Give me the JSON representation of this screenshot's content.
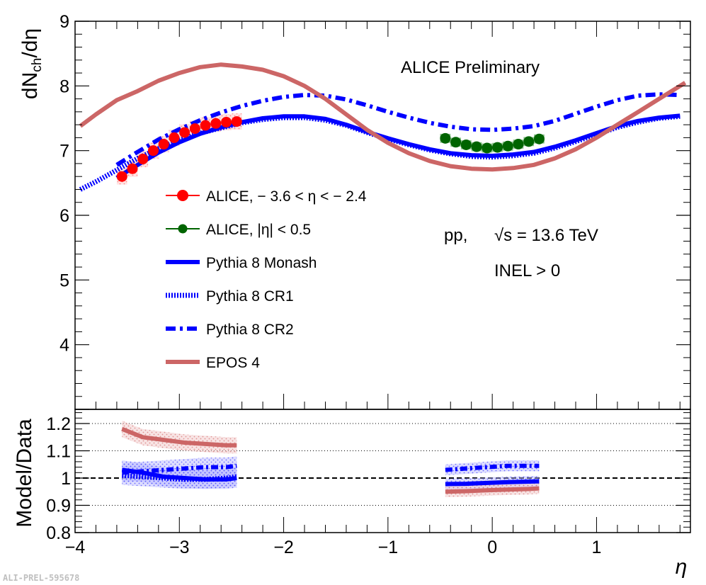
{
  "chart_data": [
    {
      "type": "line",
      "panel": "main",
      "xlabel": "η",
      "ylabel": "dN_ch/dη",
      "xlim": [
        -4,
        1.9
      ],
      "ylim": [
        3,
        9
      ],
      "yticks": [
        "4",
        "5",
        "6",
        "7",
        "8",
        "9"
      ],
      "xticks": [
        "−4",
        "−3",
        "−2",
        "−1",
        "0",
        "1"
      ],
      "annotations": {
        "title": "ALICE Preliminary",
        "system": "pp,",
        "energy": "√s = 13.6 TeV",
        "selection": "INEL > 0",
        "id": "ALI-PREL-595678"
      },
      "legend": [
        {
          "key": "alice_fwd",
          "label": "ALICE,   − 3.6 <   η <   − 2.4",
          "color": "#ff0000"
        },
        {
          "key": "alice_mid",
          "label": "ALICE, |η| < 0.5",
          "color": "#006400"
        },
        {
          "key": "monash",
          "label": "Pythia 8 Monash",
          "color": "#0000ff"
        },
        {
          "key": "cr1",
          "label": "Pythia 8 CR1",
          "color": "#0000ff"
        },
        {
          "key": "cr2",
          "label": "Pythia 8 CR2",
          "color": "#0000ff"
        },
        {
          "key": "epos",
          "label": "EPOS 4",
          "color": "#cc6666"
        }
      ],
      "data_series": [
        {
          "name": "ALICE fwd",
          "x": [
            -3.55,
            -3.45,
            -3.35,
            -3.25,
            -3.15,
            -3.05,
            -2.95,
            -2.85,
            -2.75,
            -2.65,
            -2.55,
            -2.45
          ],
          "y": [
            6.6,
            6.72,
            6.87,
            7.0,
            7.1,
            7.2,
            7.28,
            7.34,
            7.39,
            7.42,
            7.44,
            7.45
          ],
          "sys": 0.25,
          "color": "#ff0000"
        },
        {
          "name": "ALICE mid",
          "x": [
            -0.45,
            -0.35,
            -0.25,
            -0.15,
            -0.05,
            0.05,
            0.15,
            0.25,
            0.35,
            0.45
          ],
          "y": [
            7.19,
            7.13,
            7.09,
            7.06,
            7.04,
            7.05,
            7.07,
            7.1,
            7.14,
            7.18
          ],
          "sys": 0.14,
          "color": "#006400"
        }
      ],
      "model_series": [
        {
          "name": "Pythia 8 Monash",
          "x": [
            -3.6,
            -3.4,
            -3.2,
            -3.0,
            -2.8,
            -2.6,
            -2.4,
            -2.2,
            -2.0,
            -1.8,
            -1.6,
            -1.4,
            -1.2,
            -1.0,
            -0.8,
            -0.6,
            -0.4,
            -0.2,
            0,
            0.2,
            0.4,
            0.6,
            0.8,
            1.0,
            1.2,
            1.4,
            1.6,
            1.8
          ],
          "y": [
            6.58,
            6.78,
            6.97,
            7.13,
            7.26,
            7.36,
            7.44,
            7.5,
            7.53,
            7.53,
            7.49,
            7.4,
            7.29,
            7.19,
            7.1,
            7.02,
            6.96,
            6.93,
            6.92,
            6.94,
            6.98,
            7.06,
            7.16,
            7.27,
            7.38,
            7.46,
            7.51,
            7.54
          ],
          "color": "#0000ff"
        },
        {
          "name": "Pythia 8 CR1",
          "x": [
            -3.95,
            -3.8,
            -3.6,
            -3.4,
            -3.2,
            -3.0,
            -2.8,
            -2.6,
            -2.4,
            -2.2,
            -2.0,
            -1.8,
            -1.6,
            -1.4,
            -1.2,
            -1.0,
            -0.8,
            -0.6,
            -0.4,
            -0.2,
            0,
            0.2,
            0.4,
            0.6,
            0.8,
            1.0,
            1.2,
            1.4,
            1.6,
            1.8
          ],
          "y": [
            6.4,
            6.52,
            6.7,
            6.88,
            7.03,
            7.16,
            7.27,
            7.35,
            7.43,
            7.48,
            7.51,
            7.51,
            7.47,
            7.39,
            7.28,
            7.18,
            7.09,
            7.01,
            6.95,
            6.91,
            6.9,
            6.92,
            6.96,
            7.04,
            7.14,
            7.25,
            7.36,
            7.44,
            7.5,
            7.53
          ],
          "color": "#0000ff"
        },
        {
          "name": "Pythia 8 CR2",
          "x": [
            -3.6,
            -3.4,
            -3.2,
            -3.0,
            -2.8,
            -2.6,
            -2.4,
            -2.2,
            -2.0,
            -1.8,
            -1.6,
            -1.4,
            -1.2,
            -1.0,
            -0.8,
            -0.6,
            -0.4,
            -0.2,
            0,
            0.2,
            0.4,
            0.6,
            0.8,
            1.0,
            1.2,
            1.4,
            1.6,
            1.8
          ],
          "y": [
            6.78,
            6.98,
            7.17,
            7.33,
            7.47,
            7.59,
            7.69,
            7.77,
            7.83,
            7.86,
            7.85,
            7.79,
            7.7,
            7.6,
            7.51,
            7.43,
            7.37,
            7.33,
            7.32,
            7.34,
            7.38,
            7.46,
            7.57,
            7.68,
            7.78,
            7.85,
            7.87,
            7.86
          ],
          "color": "#0000ff"
        },
        {
          "name": "EPOS 4",
          "x": [
            -3.95,
            -3.8,
            -3.6,
            -3.4,
            -3.2,
            -3.0,
            -2.8,
            -2.6,
            -2.4,
            -2.2,
            -2.0,
            -1.8,
            -1.6,
            -1.4,
            -1.2,
            -1.0,
            -0.8,
            -0.6,
            -0.4,
            -0.2,
            0,
            0.2,
            0.4,
            0.6,
            0.8,
            1.0,
            1.2,
            1.4,
            1.6,
            1.85
          ],
          "y": [
            7.38,
            7.56,
            7.78,
            7.92,
            8.08,
            8.2,
            8.29,
            8.33,
            8.3,
            8.25,
            8.15,
            8.0,
            7.8,
            7.56,
            7.32,
            7.12,
            6.96,
            6.84,
            6.76,
            6.72,
            6.71,
            6.73,
            6.78,
            6.88,
            7.02,
            7.2,
            7.4,
            7.6,
            7.8,
            8.05
          ],
          "color": "#cc6666"
        }
      ]
    },
    {
      "type": "line",
      "panel": "ratio",
      "ylabel": "Model/Data",
      "xlabel": "η",
      "xlim": [
        -4,
        1.9
      ],
      "ylim": [
        0.8,
        1.27
      ],
      "yticks": [
        "0.8",
        "0.9",
        "1",
        "1.1",
        "1.2"
      ],
      "ref_lines": [
        0.9,
        1.0,
        1.1,
        1.2
      ],
      "series": [
        {
          "name": "EPOS 4 fwd",
          "x": [
            -3.55,
            -3.35,
            -3.15,
            -2.95,
            -2.75,
            -2.55,
            -2.45
          ],
          "y": [
            1.18,
            1.15,
            1.14,
            1.13,
            1.125,
            1.12,
            1.12
          ],
          "band": 0.03,
          "color": "#cc6666"
        },
        {
          "name": "Monash fwd",
          "x": [
            -3.55,
            -3.35,
            -3.15,
            -2.95,
            -2.75,
            -2.55,
            -2.45
          ],
          "y": [
            1.03,
            1.02,
            1.005,
            1.0,
            0.995,
            0.995,
            1.0
          ],
          "band": 0.035,
          "color": "#0000ff"
        },
        {
          "name": "CR1 fwd",
          "x": [
            -3.55,
            -3.35,
            -3.15,
            -2.95,
            -2.75,
            -2.55,
            -2.45
          ],
          "y": [
            1.01,
            1.005,
            1.0,
            0.995,
            0.995,
            1.0,
            1.005
          ],
          "band": 0.035,
          "color": "#0000ff"
        },
        {
          "name": "CR2 fwd",
          "x": [
            -3.55,
            -3.35,
            -3.15,
            -2.95,
            -2.75,
            -2.55,
            -2.45
          ],
          "y": [
            1.02,
            1.025,
            1.03,
            1.035,
            1.04,
            1.04,
            1.045
          ],
          "band": 0.035,
          "color": "#0000ff"
        },
        {
          "name": "CR2 mid",
          "x": [
            -0.45,
            -0.25,
            -0.05,
            0.15,
            0.35,
            0.45
          ],
          "y": [
            1.03,
            1.035,
            1.04,
            1.045,
            1.045,
            1.045
          ],
          "band": 0.02,
          "color": "#0000ff"
        },
        {
          "name": "Monash mid",
          "x": [
            -0.45,
            -0.25,
            -0.05,
            0.15,
            0.35,
            0.45
          ],
          "y": [
            0.978,
            0.979,
            0.982,
            0.985,
            0.987,
            0.988
          ],
          "band": 0.02,
          "color": "#0000ff"
        },
        {
          "name": "EPOS 4 mid",
          "x": [
            -0.45,
            -0.25,
            -0.05,
            0.15,
            0.35,
            0.45
          ],
          "y": [
            0.95,
            0.952,
            0.955,
            0.958,
            0.96,
            0.962
          ],
          "band": 0.02,
          "color": "#cc6666"
        }
      ]
    }
  ]
}
